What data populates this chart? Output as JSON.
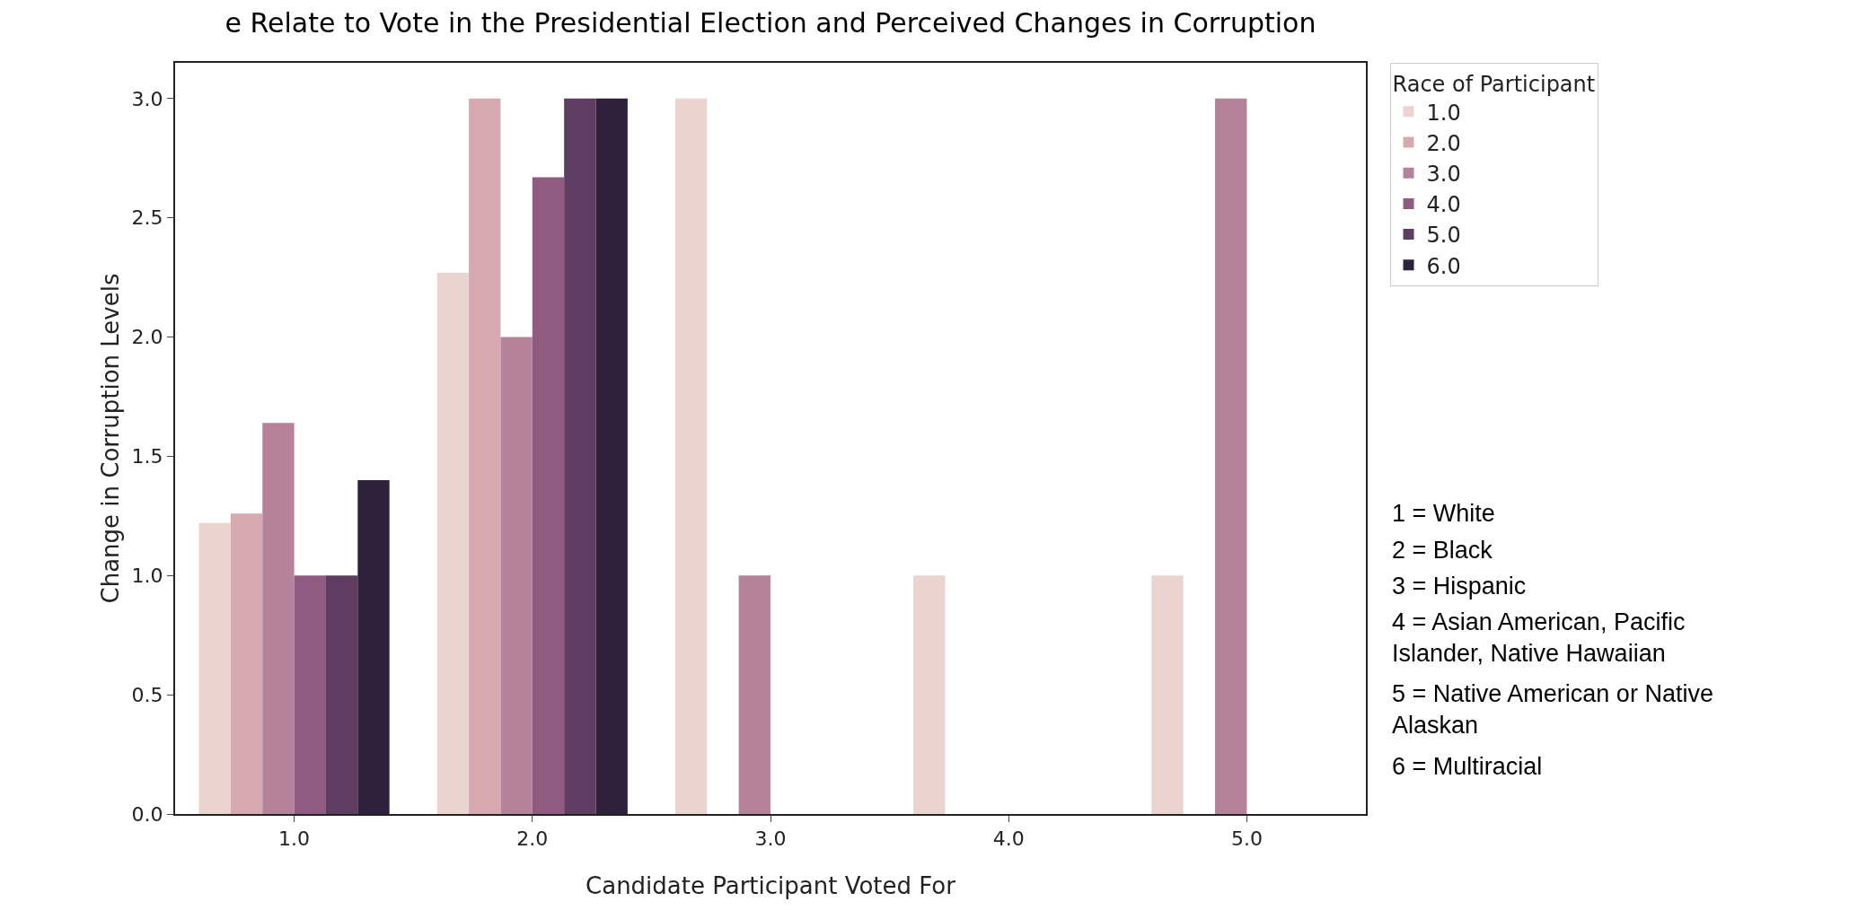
{
  "chart_data": {
    "type": "bar",
    "title": "e Relate to Vote in the Presidential Election and Perceived Changes in Corruption",
    "xlabel": "Candidate Participant Voted For",
    "ylabel": "Change in Corruption Levels",
    "legend_title": "Race of Participant",
    "categories": [
      "1.0",
      "2.0",
      "3.0",
      "4.0",
      "5.0"
    ],
    "series": [
      {
        "name": "1.0",
        "color": "#ebd4d0",
        "values": [
          1.22,
          2.27,
          3.0,
          1.0,
          1.0
        ]
      },
      {
        "name": "2.0",
        "color": "#d6a8b0",
        "values": [
          1.26,
          3.0,
          null,
          null,
          null
        ]
      },
      {
        "name": "3.0",
        "color": "#b5829a",
        "values": [
          1.64,
          2.0,
          1.0,
          null,
          3.0
        ]
      },
      {
        "name": "4.0",
        "color": "#8f5b81",
        "values": [
          1.0,
          2.67,
          null,
          null,
          null
        ]
      },
      {
        "name": "5.0",
        "color": "#5f3c62",
        "values": [
          1.0,
          3.0,
          null,
          null,
          null
        ]
      },
      {
        "name": "6.0",
        "color": "#2e2139",
        "values": [
          1.4,
          3.0,
          null,
          null,
          null
        ]
      }
    ],
    "ylim": [
      0,
      3.15
    ],
    "yticks": [
      {
        "value": 0,
        "label": "0.0"
      },
      {
        "value": 0.5,
        "label": "0.5"
      },
      {
        "value": 1,
        "label": "1.0"
      },
      {
        "value": 1.5,
        "label": "1.5"
      },
      {
        "value": 2,
        "label": "2.0"
      },
      {
        "value": 2.5,
        "label": "2.5"
      },
      {
        "value": 3,
        "label": "3.0"
      }
    ],
    "legend": "top right",
    "grid": false,
    "annotations": [
      "1 = White",
      "2 = Black",
      "3 = Hispanic",
      "4 = Asian American, Pacific Islander, Native Hawaiian",
      "5 = Native American or Native Alaskan",
      "6 = Multiracial"
    ]
  }
}
